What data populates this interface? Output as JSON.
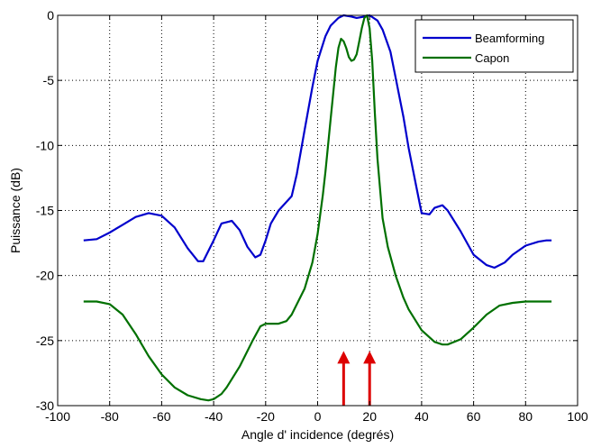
{
  "chart_data": {
    "type": "line",
    "title": "",
    "xlabel": "Angle d' incidence (degrés)",
    "ylabel": "Puissance (dB)",
    "xlim": [
      -100,
      100
    ],
    "ylim": [
      -30,
      0
    ],
    "xticks": [
      -100,
      -80,
      -60,
      -40,
      -20,
      0,
      20,
      40,
      60,
      80,
      100
    ],
    "yticks": [
      0,
      -5,
      -10,
      -15,
      -20,
      -25,
      -30
    ],
    "grid": true,
    "legend_position": "top-right",
    "series": [
      {
        "name": "Beamforming",
        "color": "#0000cc",
        "x": [
          -90,
          -85,
          -80,
          -75,
          -70,
          -65,
          -60,
          -55,
          -50,
          -46,
          -44,
          -40,
          -37,
          -33,
          -30,
          -27,
          -24,
          -22,
          -20,
          -18,
          -15,
          -10,
          -8,
          -5,
          -2,
          0,
          3,
          5,
          8,
          10,
          13,
          15,
          18,
          20,
          23,
          25,
          28,
          30,
          33,
          35,
          38,
          40,
          43,
          45,
          48,
          50,
          55,
          60,
          65,
          68,
          72,
          75,
          80,
          85,
          88,
          90
        ],
        "y": [
          -17.3,
          -17.2,
          -16.7,
          -16.1,
          -15.5,
          -15.2,
          -15.4,
          -16.3,
          -17.9,
          -18.9,
          -18.9,
          -17.3,
          -16.0,
          -15.8,
          -16.5,
          -17.8,
          -18.6,
          -18.4,
          -17.3,
          -16.0,
          -15.0,
          -13.9,
          -12.2,
          -8.8,
          -5.5,
          -3.5,
          -1.6,
          -0.8,
          -0.2,
          0.0,
          -0.1,
          -0.2,
          -0.1,
          0.0,
          -0.4,
          -1.1,
          -2.8,
          -4.8,
          -7.8,
          -10.2,
          -13.2,
          -15.2,
          -15.3,
          -14.8,
          -14.6,
          -15.0,
          -16.6,
          -18.4,
          -19.2,
          -19.4,
          -19.0,
          -18.4,
          -17.7,
          -17.4,
          -17.3,
          -17.3
        ]
      },
      {
        "name": "Capon",
        "color": "#007000",
        "x": [
          -90,
          -85,
          -80,
          -75,
          -70,
          -65,
          -60,
          -55,
          -50,
          -45,
          -42,
          -40,
          -37,
          -35,
          -30,
          -25,
          -22,
          -20,
          -15,
          -12,
          -10,
          -5,
          -2,
          0,
          2,
          3,
          5,
          7,
          8,
          9,
          10,
          11,
          12,
          13,
          14,
          15,
          16,
          17,
          18,
          19,
          20,
          21,
          22,
          23,
          25,
          27,
          30,
          33,
          35,
          40,
          45,
          48,
          50,
          55,
          60,
          65,
          70,
          75,
          80,
          85,
          90
        ],
        "y": [
          -22.0,
          -22.0,
          -22.2,
          -23.0,
          -24.5,
          -26.2,
          -27.6,
          -28.6,
          -29.2,
          -29.5,
          -29.6,
          -29.5,
          -29.1,
          -28.6,
          -27.0,
          -25.0,
          -23.9,
          -23.7,
          -23.7,
          -23.5,
          -23.0,
          -21.0,
          -19.0,
          -16.8,
          -13.8,
          -12.0,
          -8.0,
          -4.0,
          -2.5,
          -1.8,
          -2.0,
          -2.5,
          -3.2,
          -3.5,
          -3.4,
          -3.0,
          -2.0,
          -1.0,
          -0.2,
          0.0,
          -1.0,
          -3.5,
          -7.5,
          -11.0,
          -15.6,
          -17.8,
          -20.0,
          -21.7,
          -22.6,
          -24.2,
          -25.1,
          -25.3,
          -25.3,
          -24.9,
          -24.0,
          -23.0,
          -22.3,
          -22.1,
          -22.0,
          -22.0,
          -22.0
        ]
      }
    ],
    "annotations": [
      {
        "type": "arrow",
        "x": 10,
        "y_from": -30,
        "y_to": -25.8,
        "color": "#dd0000"
      },
      {
        "type": "arrow",
        "x": 20,
        "y_from": -30,
        "y_to": -25.8,
        "color": "#dd0000"
      }
    ]
  }
}
